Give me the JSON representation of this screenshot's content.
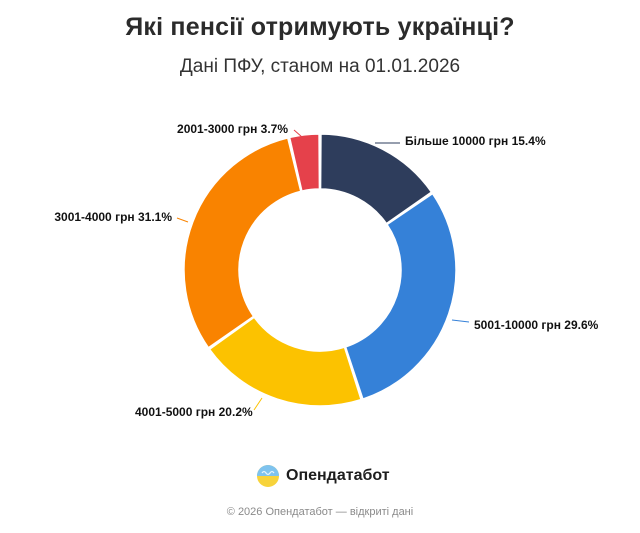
{
  "header": {
    "title": "Які пенсії отримують українці?",
    "subtitle": "Дані ПФУ, станом на 01.01.2026"
  },
  "chart_data": {
    "type": "pie",
    "variant": "donut",
    "title": "Які пенсії отримують українці?",
    "subtitle": "Дані ПФУ, станом на 01.01.2026",
    "legend": "none (labels outside slices)",
    "slices": [
      {
        "label": "Більше 10000 грн",
        "value": 15.4,
        "display": "Більше 10000 грн 15.4%",
        "color": "#2e3d5c"
      },
      {
        "label": "5001-10000 грн",
        "value": 29.6,
        "display": "5001-10000 грн 29.6%",
        "color": "#3581d8"
      },
      {
        "label": "4001-5000 грн",
        "value": 20.2,
        "display": "4001-5000 грн 20.2%",
        "color": "#fcc200"
      },
      {
        "label": "3001-4000 грн",
        "value": 31.1,
        "display": "3001-4000 грн 31.1%",
        "color": "#f98300"
      },
      {
        "label": "2001-3000 грн",
        "value": 3.7,
        "display": "2001-3000 грн 3.7%",
        "color": "#e5414b"
      }
    ]
  },
  "brand": {
    "name": "Опендатабот",
    "logo_icon": "opendatabot-logo-icon",
    "logo_colors": [
      "#7ec3ef",
      "#f7d33b"
    ]
  },
  "footer": {
    "text": "© 2026 Опендатабот — відкриті дані"
  }
}
